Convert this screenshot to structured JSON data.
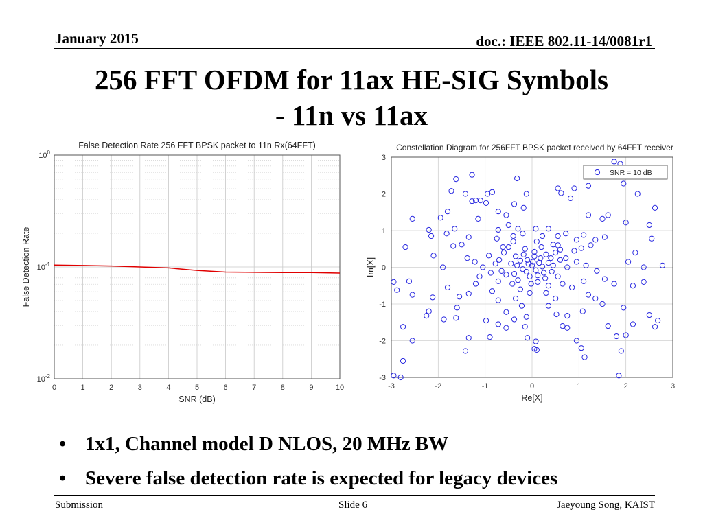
{
  "header": {
    "date": "January 2015",
    "doc": "doc.: IEEE 802.11-14/0081r1"
  },
  "title": {
    "line1": "256 FFT OFDM for 11ax HE-SIG Symbols",
    "line2": "- 11n vs 11ax"
  },
  "bullets": [
    "1x1, Channel model D NLOS, 20 MHz BW",
    "Severe false detection rate is expected for legacy devices"
  ],
  "bullet_glyph": "•",
  "footer": {
    "left": "Submission",
    "center": "Slide 6",
    "right": "Jaeyoung Song, KAIST"
  },
  "chart_data": [
    {
      "type": "line",
      "title": "False Detection Rate 256 FFT BPSK packet to 11n Rx(64FFT)",
      "xlabel": "SNR (dB)",
      "ylabel": "False Detection Rate",
      "yscale": "log",
      "xlim": [
        0,
        10
      ],
      "ylim": [
        0.01,
        1
      ],
      "xticks": [
        0,
        1,
        2,
        3,
        4,
        5,
        6,
        7,
        8,
        9,
        10
      ],
      "yticks": [
        {
          "value": 1,
          "base": "10",
          "exp": "0"
        },
        {
          "value": 0.1,
          "base": "10",
          "exp": "-1"
        },
        {
          "value": 0.01,
          "base": "10",
          "exp": "-2"
        }
      ],
      "grid": true,
      "color": "#e00000",
      "series": [
        {
          "x": [
            0,
            1,
            2,
            3,
            4,
            5,
            6,
            7,
            8,
            9,
            10
          ],
          "y": [
            0.104,
            0.103,
            0.102,
            0.1,
            0.098,
            0.093,
            0.09,
            0.0895,
            0.089,
            0.089,
            0.088
          ]
        }
      ]
    },
    {
      "type": "scatter",
      "title": "Constellation Diagram for 256FFT BPSK packet received by 64FFT receiver",
      "xlabel": "Re[X]",
      "ylabel": "Im[X]",
      "xlim": [
        -3,
        3
      ],
      "ylim": [
        -3,
        3
      ],
      "xticks": [
        -3,
        -2,
        -1,
        0,
        1,
        2,
        3
      ],
      "yticks": [
        -3,
        -2,
        -1,
        0,
        1,
        2,
        3
      ],
      "grid": true,
      "legend": {
        "label": "SNR = 10 dB",
        "position": "top-right"
      },
      "color": "#2828e0",
      "marker": "circle-open",
      "points": [
        [
          -2.95,
          -2.95
        ],
        [
          -2.75,
          -2.55
        ],
        [
          -2.55,
          -2.0
        ],
        [
          -2.75,
          -1.62
        ],
        [
          -2.88,
          -0.62
        ],
        [
          -2.95,
          -0.4
        ],
        [
          -2.62,
          -0.38
        ],
        [
          -2.7,
          0.55
        ],
        [
          -2.55,
          1.32
        ],
        [
          -2.2,
          1.02
        ],
        [
          -1.95,
          1.35
        ],
        [
          -1.8,
          1.52
        ],
        [
          -1.72,
          2.08
        ],
        [
          -1.62,
          2.4
        ],
        [
          -1.42,
          2.0
        ],
        [
          -1.28,
          2.52
        ],
        [
          -1.28,
          1.8
        ],
        [
          -1.2,
          1.82
        ],
        [
          -1.1,
          1.82
        ],
        [
          -0.98,
          1.75
        ],
        [
          -0.95,
          2.0
        ],
        [
          -0.85,
          2.05
        ],
        [
          -0.72,
          1.52
        ],
        [
          -0.55,
          1.42
        ],
        [
          -0.32,
          2.42
        ],
        [
          -0.38,
          1.72
        ],
        [
          -0.18,
          1.62
        ],
        [
          0.55,
          2.15
        ],
        [
          0.82,
          1.88
        ],
        [
          0.9,
          2.15
        ],
        [
          1.2,
          2.22
        ],
        [
          1.4,
          2.5
        ],
        [
          1.75,
          2.88
        ],
        [
          1.88,
          2.82
        ],
        [
          1.95,
          2.28
        ],
        [
          2.25,
          2.0
        ],
        [
          2.62,
          1.62
        ],
        [
          2.5,
          1.15
        ],
        [
          2.0,
          1.22
        ],
        [
          1.62,
          1.42
        ],
        [
          1.5,
          1.32
        ],
        [
          1.2,
          1.42
        ],
        [
          1.55,
          0.82
        ],
        [
          2.2,
          0.4
        ],
        [
          2.55,
          0.78
        ],
        [
          2.78,
          0.05
        ],
        [
          2.38,
          0.0
        ],
        [
          2.38,
          -0.4
        ],
        [
          2.15,
          -0.5
        ],
        [
          2.5,
          -1.3
        ],
        [
          2.62,
          -1.62
        ],
        [
          2.68,
          -1.45
        ],
        [
          2.15,
          -1.55
        ],
        [
          1.95,
          -1.1
        ],
        [
          1.62,
          -1.6
        ],
        [
          1.8,
          -1.88
        ],
        [
          2.0,
          -1.85
        ],
        [
          1.9,
          -2.28
        ],
        [
          1.85,
          -2.95
        ],
        [
          1.12,
          -2.45
        ],
        [
          1.05,
          -2.2
        ],
        [
          0.95,
          -2.0
        ],
        [
          0.75,
          -1.65
        ],
        [
          0.65,
          -1.6
        ],
        [
          0.75,
          -1.32
        ],
        [
          0.52,
          -1.28
        ],
        [
          0.05,
          -2.22
        ],
        [
          0.1,
          -2.25
        ],
        [
          0.08,
          -2.02
        ],
        [
          -0.1,
          -1.92
        ],
        [
          -0.15,
          -1.62
        ],
        [
          -0.38,
          -1.42
        ],
        [
          -0.55,
          -1.22
        ],
        [
          -0.72,
          -1.55
        ],
        [
          -0.98,
          -1.45
        ],
        [
          -0.9,
          -1.9
        ],
        [
          -0.55,
          -1.65
        ],
        [
          -1.35,
          -1.92
        ],
        [
          -1.42,
          -2.28
        ],
        [
          -1.35,
          -0.72
        ],
        [
          -1.62,
          -1.38
        ],
        [
          -1.88,
          -1.42
        ],
        [
          -2.12,
          -0.82
        ],
        [
          -2.25,
          -1.32
        ],
        [
          -2.55,
          -0.75
        ],
        [
          -1.8,
          -0.55
        ],
        [
          -1.55,
          -0.8
        ],
        [
          -1.2,
          -0.45
        ],
        [
          -1.12,
          -0.25
        ],
        [
          -1.05,
          0.0
        ],
        [
          -1.22,
          0.15
        ],
        [
          -1.38,
          0.25
        ],
        [
          -1.5,
          0.62
        ],
        [
          -1.68,
          0.58
        ],
        [
          -2.1,
          0.32
        ],
        [
          -2.15,
          0.85
        ],
        [
          -1.82,
          0.92
        ],
        [
          -1.65,
          1.05
        ],
        [
          -1.35,
          0.82
        ],
        [
          -1.15,
          1.32
        ],
        [
          -0.72,
          1.02
        ],
        [
          -0.5,
          1.15
        ],
        [
          -0.3,
          1.05
        ],
        [
          0.35,
          1.05
        ],
        [
          0.55,
          0.85
        ],
        [
          0.72,
          0.92
        ],
        [
          0.95,
          0.75
        ],
        [
          1.1,
          0.88
        ],
        [
          1.35,
          0.75
        ],
        [
          1.25,
          0.6
        ],
        [
          1.05,
          0.52
        ],
        [
          0.9,
          0.45
        ],
        [
          0.72,
          0.25
        ],
        [
          0.95,
          0.15
        ],
        [
          1.15,
          0.05
        ],
        [
          1.38,
          -0.1
        ],
        [
          1.55,
          -0.32
        ],
        [
          1.1,
          -0.38
        ],
        [
          0.85,
          -0.55
        ],
        [
          1.2,
          -0.75
        ],
        [
          1.35,
          -0.85
        ],
        [
          1.5,
          -1.0
        ],
        [
          1.08,
          -1.2
        ],
        [
          0.5,
          -0.85
        ],
        [
          0.35,
          -1.05
        ],
        [
          -0.12,
          -1.35
        ],
        [
          -0.22,
          -1.05
        ],
        [
          -0.35,
          -0.85
        ],
        [
          -0.72,
          -0.9
        ],
        [
          -0.85,
          -0.65
        ],
        [
          -0.72,
          -0.38
        ],
        [
          -0.88,
          -0.15
        ],
        [
          -0.78,
          0.1
        ],
        [
          -0.92,
          0.32
        ],
        [
          -0.62,
          0.55
        ],
        [
          -0.75,
          0.78
        ],
        [
          -0.4,
          0.85
        ],
        [
          -0.2,
          0.92
        ],
        [
          0.08,
          1.05
        ],
        [
          0.22,
          0.85
        ],
        [
          0.45,
          0.62
        ],
        [
          0.6,
          0.48
        ],
        [
          -2.8,
          -3.0
        ],
        [
          -2.2,
          -1.2
        ],
        [
          1.75,
          -0.45
        ],
        [
          2.05,
          0.15
        ],
        [
          -1.9,
          0.0
        ],
        [
          0.62,
          2.02
        ],
        [
          -0.12,
          2.0
        ],
        [
          -1.6,
          -1.1
        ],
        [
          0.05,
          0.3
        ],
        [
          -0.1,
          0.2
        ],
        [
          0.15,
          0.12
        ],
        [
          -0.2,
          -0.05
        ],
        [
          0.25,
          -0.15
        ],
        [
          -0.05,
          -0.25
        ],
        [
          0.3,
          0.35
        ],
        [
          -0.35,
          0.3
        ],
        [
          0.12,
          -0.4
        ],
        [
          -0.3,
          -0.35
        ],
        [
          0.45,
          0.05
        ],
        [
          -0.45,
          0.1
        ],
        [
          0.35,
          -0.5
        ],
        [
          -0.15,
          0.5
        ],
        [
          0.55,
          -0.25
        ],
        [
          -0.55,
          -0.2
        ],
        [
          0.2,
          0.55
        ],
        [
          -0.25,
          -0.6
        ],
        [
          0.6,
          0.2
        ],
        [
          -0.6,
          0.4
        ],
        [
          0.0,
          0.05
        ],
        [
          0.08,
          -0.08
        ],
        [
          -0.08,
          0.1
        ],
        [
          0.18,
          0.25
        ],
        [
          -0.18,
          0.35
        ],
        [
          0.28,
          -0.3
        ],
        [
          -0.32,
          0.05
        ],
        [
          0.4,
          0.25
        ],
        [
          -0.42,
          -0.45
        ],
        [
          0.5,
          0.4
        ],
        [
          -0.5,
          0.55
        ],
        [
          0.65,
          -0.45
        ],
        [
          -0.65,
          -0.1
        ],
        [
          0.1,
          0.7
        ],
        [
          -0.05,
          -0.7
        ],
        [
          0.75,
          0.0
        ],
        [
          -0.7,
          0.2
        ],
        [
          0.3,
          -0.7
        ],
        [
          -0.4,
          0.7
        ],
        [
          0.55,
          0.6
        ],
        [
          0.02,
          0.15
        ],
        [
          -0.12,
          -0.12
        ],
        [
          0.22,
          0.02
        ],
        [
          -0.25,
          0.18
        ],
        [
          0.12,
          -0.22
        ],
        [
          0.35,
          0.12
        ],
        [
          -0.38,
          -0.18
        ],
        [
          0.05,
          0.42
        ],
        [
          -0.02,
          -0.45
        ],
        [
          0.42,
          -0.12
        ]
      ]
    }
  ]
}
